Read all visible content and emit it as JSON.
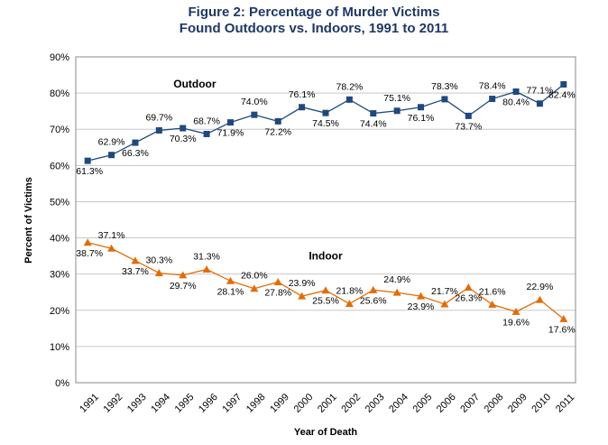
{
  "chart_data": {
    "type": "line",
    "title_line1": "Figure 2: Percentage of Murder Victims",
    "title_line2": "Found Outdoors vs. Indoors, 1991 to 2011",
    "xlabel": "Year of Death",
    "ylabel": "Percent of Victims",
    "ylim": [
      0,
      90
    ],
    "y_ticks": [
      "0%",
      "10%",
      "20%",
      "30%",
      "40%",
      "50%",
      "60%",
      "70%",
      "80%",
      "90%"
    ],
    "grid": true,
    "categories": [
      "1991",
      "1992",
      "1993",
      "1994",
      "1995",
      "1996",
      "1997",
      "1998",
      "1999",
      "2000",
      "2001",
      "2002",
      "2003",
      "2004",
      "2005",
      "2006",
      "2007",
      "2008",
      "2009",
      "2010",
      "2011"
    ],
    "series": [
      {
        "name": "Outdoor",
        "color": "#1f497d",
        "marker": "square",
        "values": [
          61.3,
          62.9,
          66.3,
          69.7,
          70.3,
          68.7,
          71.9,
          74.0,
          72.2,
          76.1,
          74.5,
          78.2,
          74.4,
          75.1,
          76.1,
          78.3,
          73.7,
          78.4,
          80.4,
          77.1,
          82.4
        ],
        "labels": [
          "61.3%",
          "62.9%",
          "66.3%",
          "69.7%",
          "70.3%",
          "68.7%",
          "71.9%",
          "74.0%",
          "72.2%",
          "76.1%",
          "74.5%",
          "78.2%",
          "74.4%",
          "75.1%",
          "76.1%",
          "78.3%",
          "73.7%",
          "78.4%",
          "80.4%",
          "77.1%",
          "82.4%"
        ]
      },
      {
        "name": "Indoor",
        "color": "#e36c09",
        "marker": "triangle",
        "values": [
          38.7,
          37.1,
          33.7,
          30.3,
          29.7,
          31.3,
          28.1,
          26.0,
          27.8,
          23.9,
          25.5,
          21.8,
          25.6,
          24.9,
          23.9,
          21.7,
          26.3,
          21.6,
          19.6,
          22.9,
          17.6
        ],
        "labels": [
          "38.7%",
          "37.1%",
          "33.7%",
          "30.3%",
          "29.7%",
          "31.3%",
          "28.1%",
          "26.0%",
          "27.8%",
          "23.9%",
          "25.5%",
          "21.8%",
          "25.6%",
          "24.9%",
          "23.9%",
          "21.7%",
          "26.3%",
          "21.6%",
          "19.6%",
          "22.9%",
          "17.6%"
        ]
      }
    ]
  }
}
